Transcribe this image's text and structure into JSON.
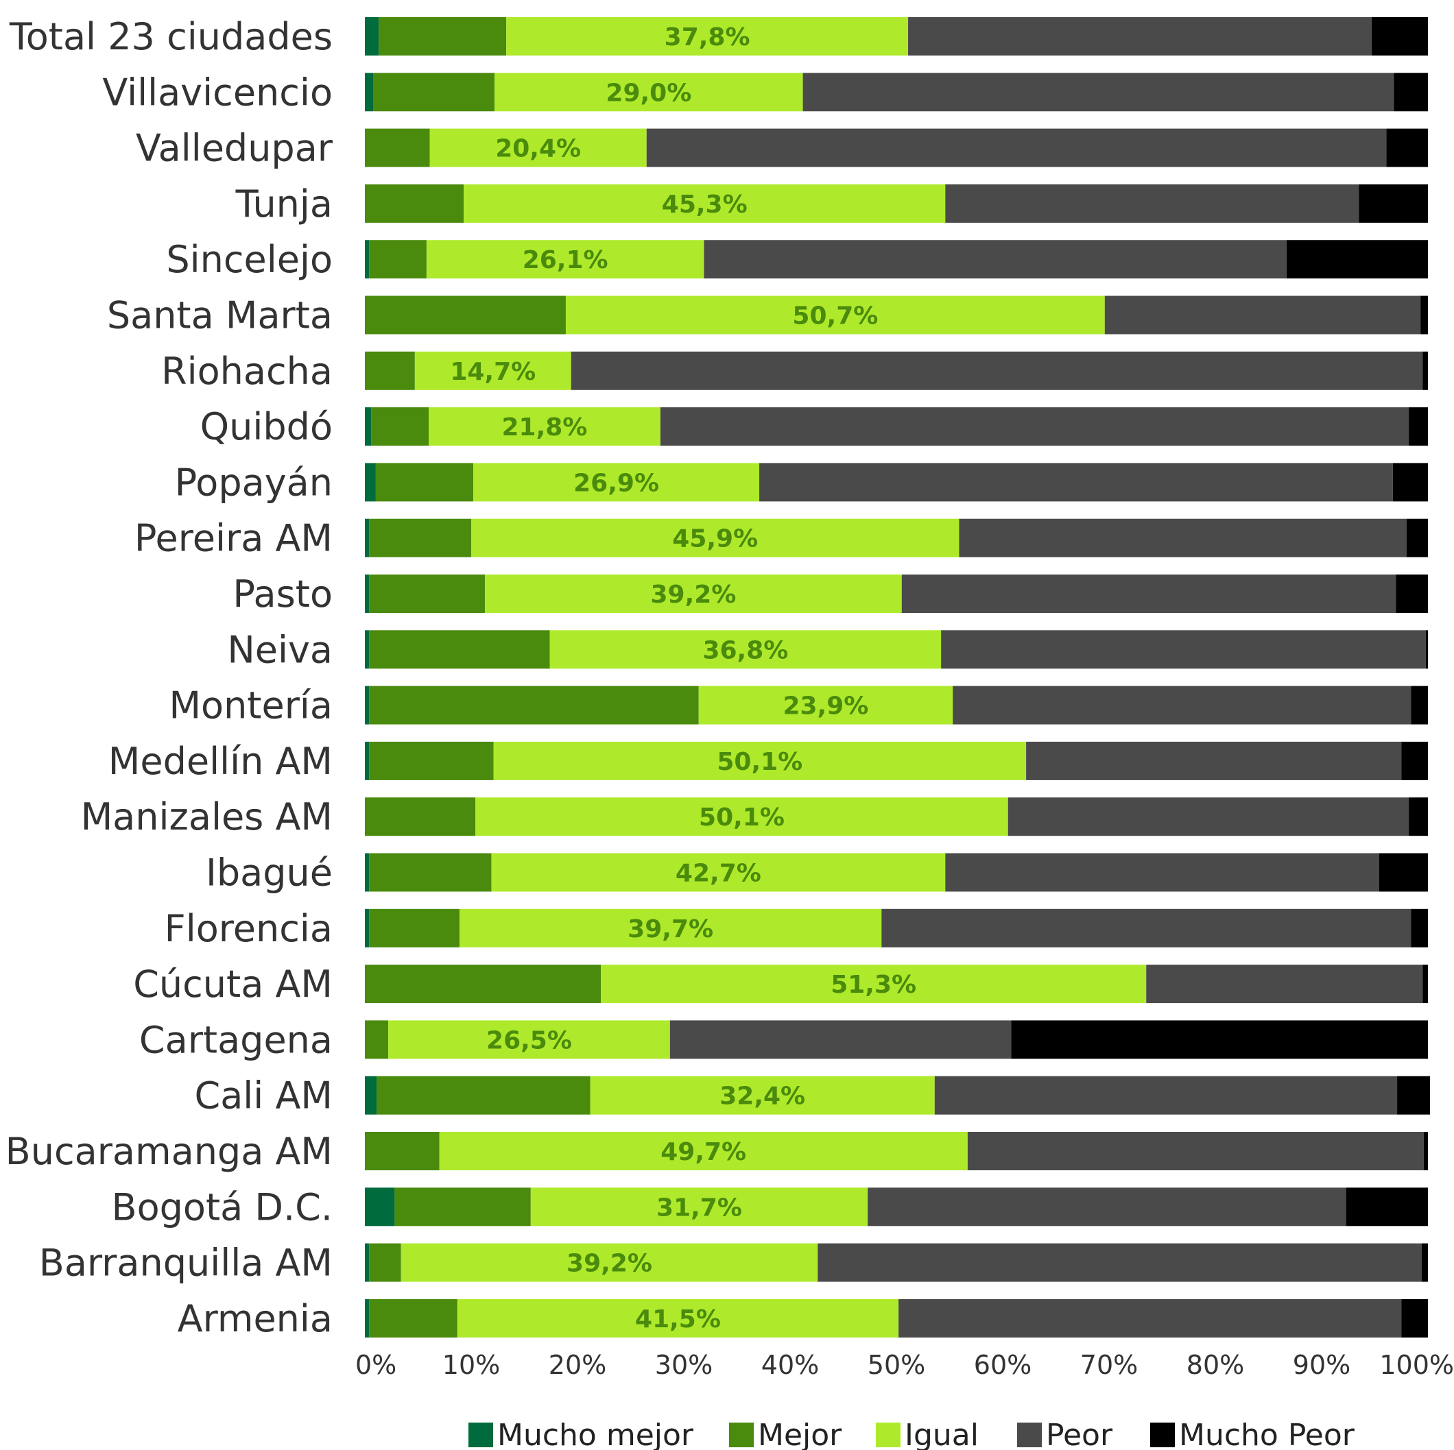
{
  "chart_data": {
    "type": "bar",
    "orientation": "horizontal",
    "stacked": "percent",
    "categories": [
      "Total 23 ciudades",
      "Villavicencio",
      "Valledupar",
      "Tunja",
      "Sincelejo",
      "Santa Marta",
      "Riohacha",
      "Quibdó",
      "Popayán",
      "Pereira AM",
      "Pasto",
      "Neiva",
      "Montería",
      "Medellín AM",
      "Manizales AM",
      "Ibagué",
      "Florencia",
      "Cúcuta AM",
      "Cartagena",
      "Cali AM",
      "Bucaramanga AM",
      "Bogotá D.C.",
      "Barranquilla AM",
      "Armenia"
    ],
    "series": [
      {
        "name": "Mucho mejor",
        "color": "#006b3c",
        "values": [
          1.3,
          0.8,
          0.0,
          0.0,
          0.4,
          0.0,
          0.0,
          0.6,
          1.0,
          0.4,
          0.4,
          0.4,
          0.4,
          0.4,
          0.0,
          0.4,
          0.4,
          0.0,
          0.0,
          1.1,
          0.0,
          2.8,
          0.4,
          0.4
        ]
      },
      {
        "name": "Mejor",
        "color": "#4a8a0c",
        "values": [
          12.0,
          11.4,
          6.1,
          9.3,
          5.4,
          18.9,
          4.7,
          5.4,
          9.2,
          9.6,
          10.9,
          17.0,
          31.0,
          11.7,
          10.4,
          11.5,
          8.5,
          22.2,
          2.2,
          20.1,
          7.0,
          12.8,
          3.0,
          8.3
        ]
      },
      {
        "name": "Igual",
        "color": "#aeea2b",
        "values": [
          37.8,
          29.0,
          20.4,
          45.3,
          26.1,
          50.7,
          14.7,
          21.8,
          26.9,
          45.9,
          39.2,
          36.8,
          23.9,
          50.1,
          50.1,
          42.7,
          39.7,
          51.3,
          26.5,
          32.4,
          49.7,
          31.7,
          39.2,
          41.5
        ]
      },
      {
        "name": "Peor",
        "color": "#4a4a4a",
        "values": [
          43.6,
          55.6,
          69.6,
          38.9,
          54.8,
          29.7,
          80.1,
          70.4,
          59.6,
          42.1,
          46.5,
          45.6,
          43.1,
          35.3,
          37.7,
          40.8,
          49.8,
          26.0,
          32.1,
          43.5,
          42.9,
          45.0,
          56.8,
          47.3
        ]
      },
      {
        "name": "Mucho Peor",
        "color": "#000000",
        "values": [
          5.3,
          3.2,
          3.9,
          6.5,
          13.3,
          0.7,
          0.5,
          1.8,
          3.3,
          2.0,
          3.0,
          0.2,
          1.6,
          2.5,
          1.8,
          4.6,
          1.6,
          0.5,
          39.2,
          3.1,
          0.4,
          7.7,
          0.6,
          2.5
        ]
      }
    ],
    "data_labels_series": "Igual",
    "data_labels": [
      "37,8%",
      "29,0%",
      "20,4%",
      "45,3%",
      "26,1%",
      "50,7%",
      "14,7%",
      "21,8%",
      "26,9%",
      "45,9%",
      "39,2%",
      "36,8%",
      "23,9%",
      "50,1%",
      "50,1%",
      "42,7%",
      "39,7%",
      "51,3%",
      "26,5%",
      "32,4%",
      "49,7%",
      "31,7%",
      "39,2%",
      "41,5%"
    ],
    "x_ticks": [
      "0%",
      "10%",
      "20%",
      "30%",
      "40%",
      "50%",
      "60%",
      "70%",
      "80%",
      "90%",
      "100%"
    ],
    "xlim": [
      0,
      100
    ],
    "grid": false,
    "legend_position": "bottom"
  }
}
